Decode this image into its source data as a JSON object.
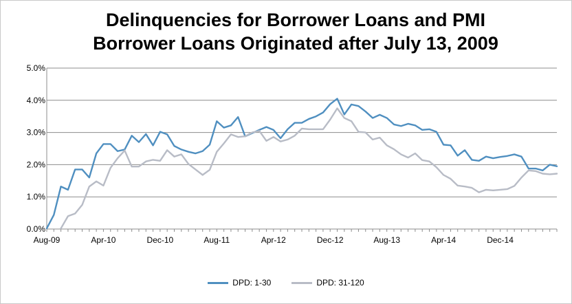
{
  "chart_data": {
    "type": "line",
    "title_line1": "Delinquencies for Borrower Loans and PMI",
    "title_line2": "Borrower Loans Originated after July 13, 2009",
    "ylim": [
      0,
      5
    ],
    "y_ticks": [
      "0.0%",
      "1.0%",
      "2.0%",
      "3.0%",
      "4.0%",
      "5.0%"
    ],
    "x_ticks": [
      {
        "label": "Aug-09",
        "index": 0
      },
      {
        "label": "Apr-10",
        "index": 8
      },
      {
        "label": "Dec-10",
        "index": 16
      },
      {
        "label": "Aug-11",
        "index": 24
      },
      {
        "label": "Apr-12",
        "index": 32
      },
      {
        "label": "Dec-12",
        "index": 40
      },
      {
        "label": "Aug-13",
        "index": 48
      },
      {
        "label": "Apr-14",
        "index": 56
      },
      {
        "label": "Dec-14",
        "index": 64
      }
    ],
    "grid": true,
    "legend_position": "bottom",
    "series": [
      {
        "name": "DPD: 1-30",
        "color": "#4f8fc0",
        "start": "Aug-09",
        "values": [
          0.02,
          0.44,
          1.32,
          1.22,
          1.85,
          1.85,
          1.6,
          2.35,
          2.64,
          2.64,
          2.42,
          2.47,
          2.9,
          2.7,
          2.95,
          2.6,
          3.02,
          2.94,
          2.58,
          2.47,
          2.4,
          2.35,
          2.42,
          2.62,
          3.35,
          3.15,
          3.22,
          3.48,
          2.88,
          2.98,
          3.08,
          3.17,
          3.08,
          2.82,
          3.1,
          3.3,
          3.3,
          3.42,
          3.5,
          3.62,
          3.88,
          4.05,
          3.56,
          3.87,
          3.82,
          3.65,
          3.45,
          3.55,
          3.45,
          3.25,
          3.2,
          3.27,
          3.22,
          3.08,
          3.1,
          3.02,
          2.62,
          2.6,
          2.28,
          2.45,
          2.15,
          2.12,
          2.25,
          2.2,
          2.24,
          2.27,
          2.32,
          2.25,
          1.88,
          1.88,
          1.82,
          2.0,
          1.95
        ]
      },
      {
        "name": "DPD: 31-120",
        "color": "#b8bcc6",
        "start": "Aug-09",
        "values": [
          null,
          null,
          0.02,
          0.4,
          0.48,
          0.75,
          1.32,
          1.48,
          1.35,
          1.9,
          2.2,
          2.44,
          1.94,
          1.94,
          2.1,
          2.15,
          2.12,
          2.45,
          2.25,
          2.32,
          2.02,
          1.85,
          1.68,
          1.84,
          2.4,
          2.66,
          2.94,
          2.86,
          2.88,
          3.0,
          3.05,
          2.74,
          2.86,
          2.72,
          2.78,
          2.9,
          3.12,
          3.1,
          3.1,
          3.1,
          3.4,
          3.75,
          3.45,
          3.35,
          3.02,
          3.0,
          2.78,
          2.84,
          2.6,
          2.48,
          2.32,
          2.22,
          2.35,
          2.14,
          2.1,
          1.92,
          1.68,
          1.56,
          1.35,
          1.32,
          1.28,
          1.14,
          1.22,
          1.2,
          1.22,
          1.24,
          1.34,
          1.6,
          1.82,
          1.8,
          1.72,
          1.7,
          1.72
        ]
      }
    ]
  }
}
